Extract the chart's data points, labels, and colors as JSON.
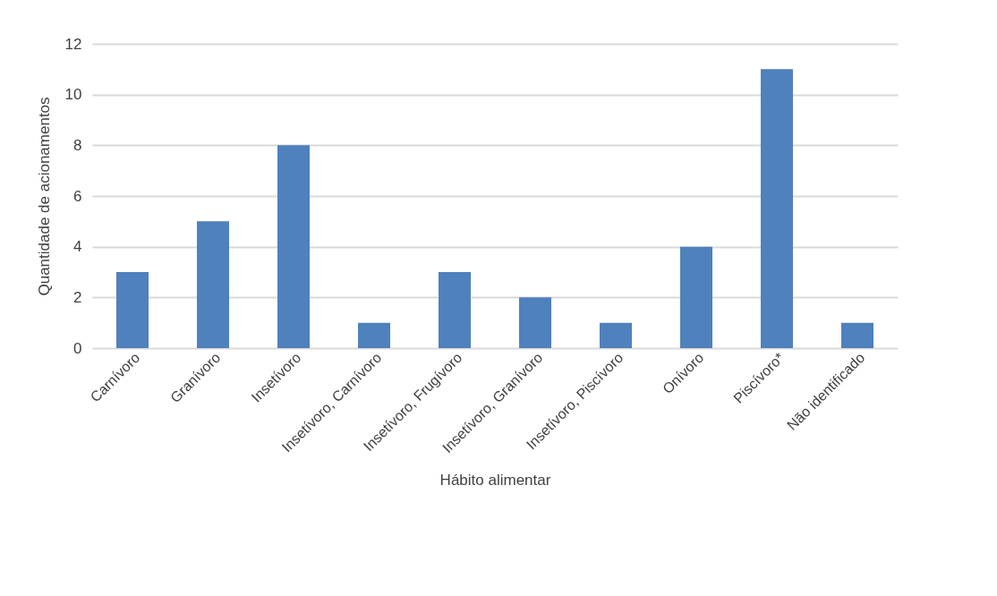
{
  "chart_data": {
    "type": "bar",
    "xlabel": "Hábito alimentar",
    "ylabel": "Quantidade de acionamentos",
    "categories": [
      "Carnívoro",
      "Granívoro",
      "Insetívoro",
      "Insetívoro, Carnívoro",
      "Insetívoro, Frugívoro",
      "Insetívoro, Granívoro",
      "Insetívoro, Piscívoro",
      "Onívoro",
      "Piscívoro*",
      "Não identificado"
    ],
    "values": [
      3,
      5,
      8,
      1,
      3,
      2,
      1,
      4,
      11,
      1
    ],
    "color": "#4f81bd",
    "ylim": [
      0,
      12
    ],
    "yticks": [
      0,
      2,
      4,
      6,
      8,
      10,
      12
    ],
    "grid": "y"
  }
}
